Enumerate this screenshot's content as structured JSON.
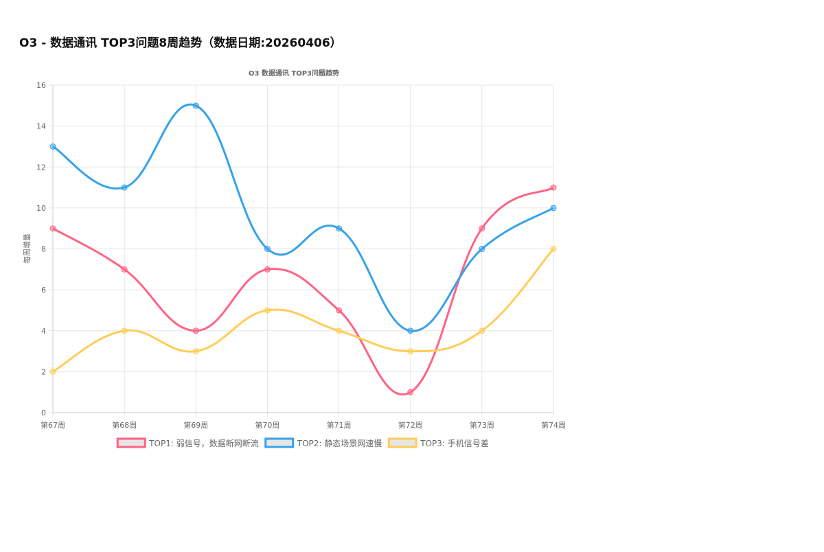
{
  "page": {
    "title": "O3 - 数据通讯 TOP3问题8周趋势（数据日期:20260406）"
  },
  "chart_data": {
    "type": "line",
    "title": "O3 数据通讯 TOP3问题趋势",
    "xlabel": "",
    "ylabel": "每周增量",
    "categories": [
      "第67周",
      "第68周",
      "第69周",
      "第70周",
      "第71周",
      "第72周",
      "第73周",
      "第74周"
    ],
    "ylim": [
      0,
      16
    ],
    "yticks": [
      0,
      2,
      4,
      6,
      8,
      10,
      12,
      14,
      16
    ],
    "grid": true,
    "legend_position": "bottom",
    "series": [
      {
        "name": "TOP1: 弱信号，数据断网断流",
        "color": "#ff6384",
        "values": [
          9,
          7,
          4,
          7,
          5,
          1,
          9,
          11
        ]
      },
      {
        "name": "TOP2: 静态场景网速慢",
        "color": "#36a2eb",
        "values": [
          13,
          11,
          15,
          8,
          9,
          4,
          8,
          10
        ]
      },
      {
        "name": "TOP3: 手机信号差",
        "color": "#ffcd56",
        "values": [
          2,
          4,
          3,
          5,
          4,
          3,
          4,
          8
        ]
      }
    ]
  }
}
